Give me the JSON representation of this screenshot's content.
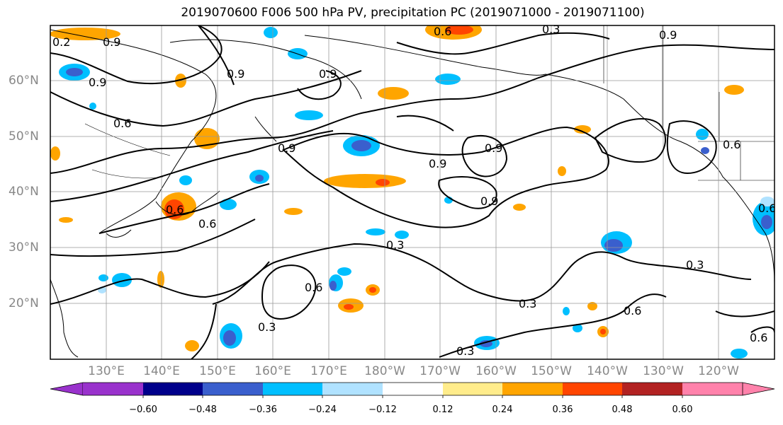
{
  "title": "2019070600 F006 500 hPa PV, precipitation PC (2019071000 - 2019071100)",
  "lat_labels": [
    "60°N",
    "50°N",
    "40°N",
    "30°N",
    "20°N"
  ],
  "lon_labels": [
    "130°E",
    "140°E",
    "150°E",
    "160°E",
    "170°E",
    "180°W",
    "170°W",
    "160°W",
    "150°W",
    "140°W",
    "130°W",
    "120°W"
  ],
  "contour_labels": {
    "c1": "0.9",
    "c2": "0.9",
    "c3": "0.6",
    "c4": "0.9",
    "c5": "0.9",
    "c6": "0.9",
    "c7": "0.9",
    "c8": "0.6",
    "c9": "0.6",
    "c10": "0.3",
    "c11": "0.3",
    "c12": "0.6",
    "c13": "0.3",
    "c14": "0.3",
    "c15": "0.6",
    "c16": "0.3",
    "c17": "0.6",
    "c18": "0.9",
    "c19": "0.6",
    "c20": "0.9",
    "c21": "0.3",
    "c22": "0.6",
    "c23": "0.2"
  },
  "colorbar": {
    "ticks": [
      "−0.60",
      "−0.48",
      "−0.36",
      "−0.24",
      "−0.12",
      "0.12",
      "0.24",
      "0.36",
      "0.48",
      "0.60"
    ],
    "colors": [
      "#9932CC",
      "#00008B",
      "#3A5FCD",
      "#00BFFF",
      "#B0E2FF",
      "#FFFFFF",
      "#FFEC8B",
      "#FFA500",
      "#FF4500",
      "#B22222",
      "#FF82AB"
    ]
  },
  "colors": {
    "axis_label": "#888888",
    "grid": "#999999",
    "contour": "#000000"
  }
}
